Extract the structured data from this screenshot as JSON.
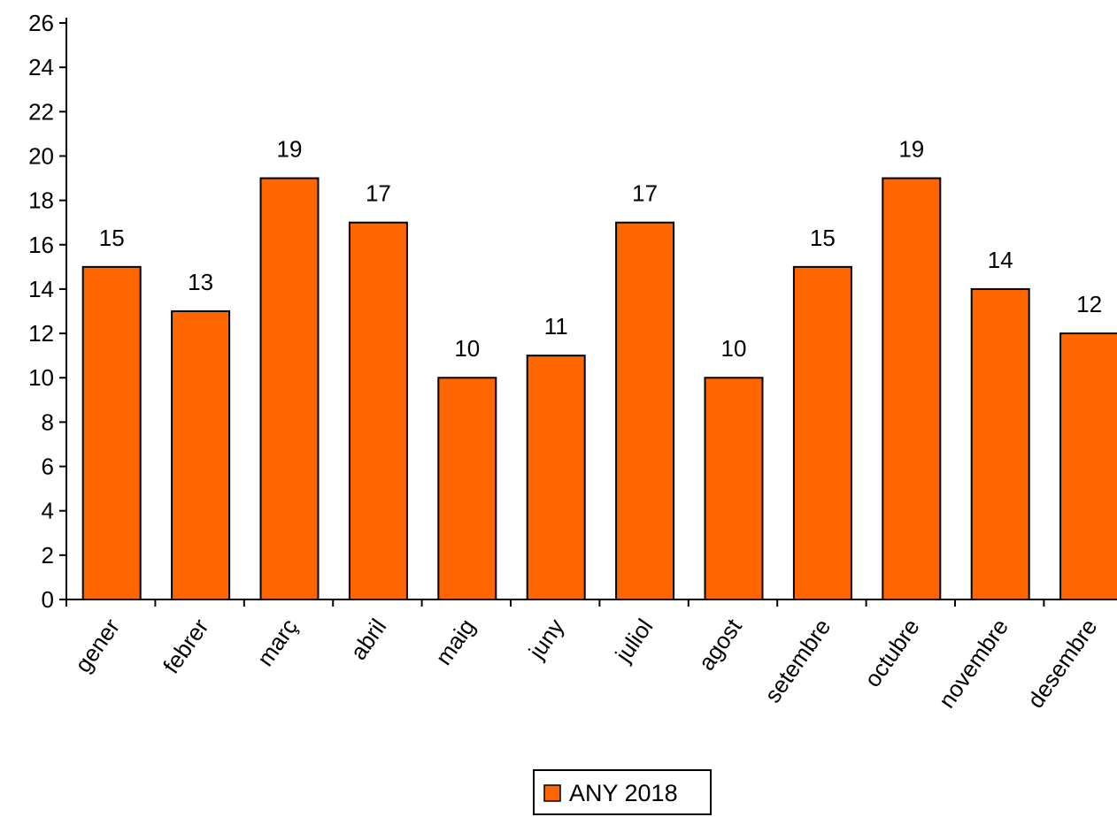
{
  "chart_data": {
    "type": "bar",
    "categories": [
      "gener",
      "febrer",
      "març",
      "abril",
      "maig",
      "juny",
      "juliol",
      "agost",
      "setembre",
      "octubre",
      "novembre",
      "desembre"
    ],
    "series": [
      {
        "name": "ANY 2018",
        "values": [
          15,
          13,
          19,
          17,
          10,
          11,
          17,
          10,
          15,
          19,
          14,
          12
        ],
        "color": "#FF6600"
      }
    ],
    "title": "",
    "xlabel": "",
    "ylabel": "",
    "ylim": [
      0,
      26
    ],
    "yticks": [
      "0",
      "2",
      "4",
      "6",
      "8",
      "10",
      "12",
      "14",
      "16",
      "18",
      "20",
      "22",
      "24",
      "26"
    ],
    "data_labels": [
      "15",
      "13",
      "19",
      "17",
      "10",
      "11",
      "17",
      "10",
      "15",
      "19",
      "14",
      "12"
    ],
    "grid": false,
    "legend_position": "bottom-center"
  },
  "legend": {
    "label": "ANY 2018"
  }
}
